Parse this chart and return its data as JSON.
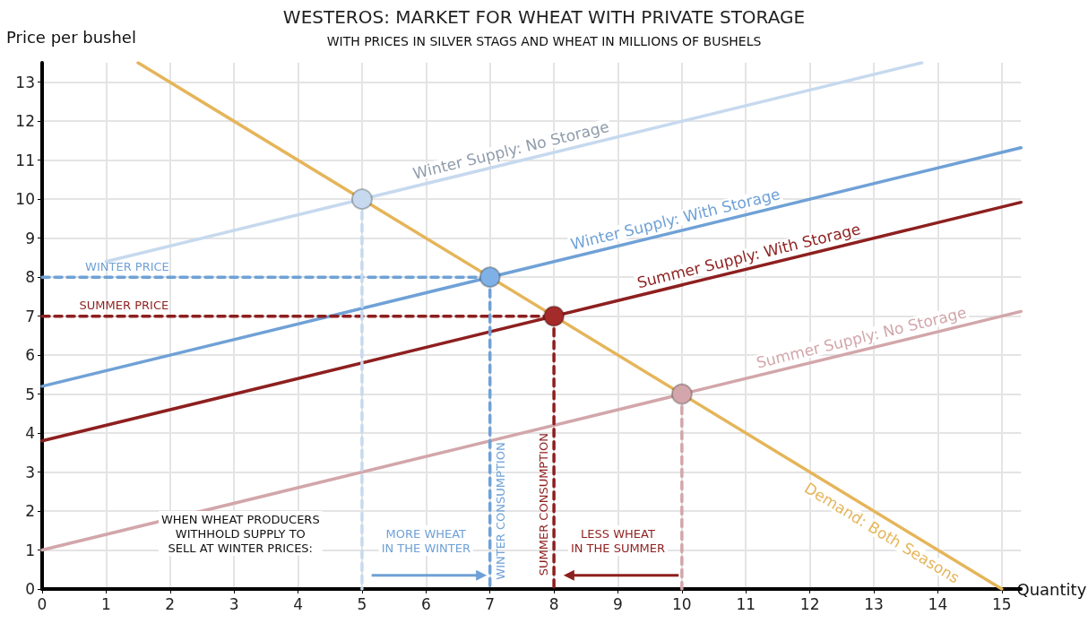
{
  "chart_data": {
    "type": "line",
    "title": "WESTEROS: MARKET FOR WHEAT WITH PRIVATE STORAGE",
    "subtitle": "WITH PRICES IN SILVER STAGS AND WHEAT IN MILLIONS OF BUSHELS",
    "xlabel": "Quantity",
    "ylabel": "Price per bushel",
    "xlim": [
      0,
      15.3
    ],
    "ylim": [
      0,
      13.5
    ],
    "xticks": [
      0,
      1,
      2,
      3,
      4,
      5,
      6,
      7,
      8,
      9,
      10,
      11,
      12,
      13,
      14,
      15
    ],
    "yticks": [
      0,
      1,
      2,
      3,
      4,
      5,
      6,
      7,
      8,
      9,
      10,
      11,
      12,
      13
    ],
    "grid": true,
    "marker": "none",
    "line_style": "solid",
    "series": [
      {
        "name": "Winter Supply: No Storage",
        "color": "#c6d9ee",
        "x": [
          1,
          13.75
        ],
        "values": [
          8.4,
          13.5
        ]
      },
      {
        "name": "Winter Supply: With Storage",
        "color": "#6fa1d6",
        "x": [
          0,
          15.3
        ],
        "values": [
          5.2,
          11.32
        ]
      },
      {
        "name": "Summer Supply: With Storage",
        "color": "#8e1f1f",
        "x": [
          0,
          15.3
        ],
        "values": [
          3.8,
          9.92
        ]
      },
      {
        "name": "Summer Supply: No Storage",
        "color": "#d2a6aa",
        "x": [
          0,
          15.3
        ],
        "values": [
          1,
          7.12
        ]
      },
      {
        "name": "Demand: Both Seasons",
        "color": "#e5b55a",
        "x": [
          1.5,
          15
        ],
        "values": [
          13.5,
          0
        ]
      },
      {
        "name": "WINTER PRICE",
        "color": "#6fa1d6",
        "line_style": "dashed",
        "x": [
          0,
          7
        ],
        "values": [
          8,
          8
        ]
      },
      {
        "name": "SUMMER PRICE",
        "color": "#8e1f1f",
        "line_style": "dashed",
        "x": [
          0,
          8
        ],
        "values": [
          7,
          7
        ]
      },
      {
        "name": "WINTER CONSUMPTION",
        "color": "#6fa1d6",
        "line_style": "dashed",
        "x": [
          7,
          7
        ],
        "values": [
          8,
          0
        ]
      },
      {
        "name": "SUMMER CONSUMPTION",
        "color": "#8e1f1f",
        "line_style": "dashed",
        "x": [
          8,
          8
        ],
        "values": [
          7,
          0
        ]
      },
      {
        "color": "#c6d9ee",
        "line_style": "dashed",
        "x": [
          5,
          5
        ],
        "values": [
          10,
          0
        ]
      },
      {
        "color": "#d2a6aa",
        "line_style": "dashed",
        "x": [
          10,
          10
        ],
        "values": [
          5,
          0
        ]
      },
      {
        "type": "scatter",
        "marker": "circle",
        "x": [
          5,
          7,
          8,
          10
        ],
        "values": [
          10,
          8,
          7,
          5
        ],
        "colors": [
          "#c6d9ee",
          "#7fb0e6",
          "#a52a2a",
          "#d2a6aa"
        ]
      }
    ],
    "annotations": [
      "WHEN WHEAT PRODUCERS\nWITHHOLD SUPPLY TO\nSELL AT WINTER PRICES:",
      "MORE WHEAT\nIN THE WINTER",
      "LESS WHEAT\nIN THE SUMMER"
    ]
  }
}
